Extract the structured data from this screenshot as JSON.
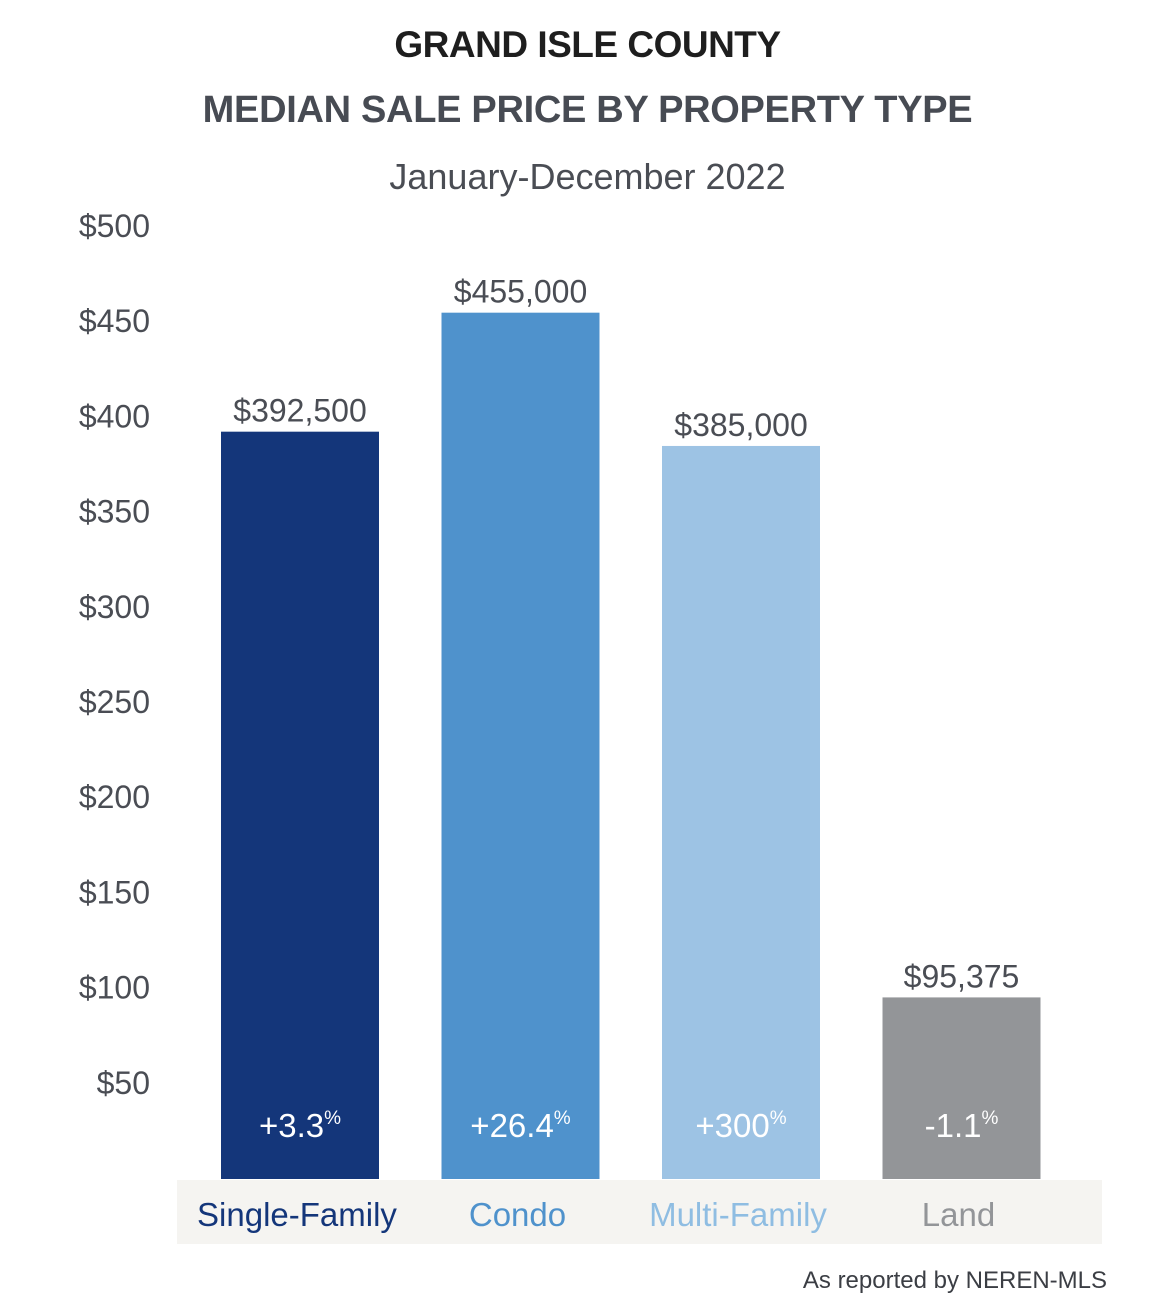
{
  "title_line_1": "GRAND ISLE COUNTY",
  "title_line_2": "MEDIAN SALE PRICE BY PROPERTY TYPE",
  "subtitle": "January-December 2022",
  "source_note": "As reported by NEREN-MLS",
  "chart_data": {
    "type": "bar",
    "title": "GRAND ISLE COUNTY MEDIAN SALE PRICE BY PROPERTY TYPE",
    "subtitle": "January-December 2022",
    "categories": [
      "Single-Family",
      "Condo",
      "Multi-Family",
      "Land"
    ],
    "values": [
      392500,
      455000,
      385000,
      95375
    ],
    "value_labels": [
      "$392,500",
      "$455,000",
      "$385,000",
      "$95,375"
    ],
    "change_labels": [
      "+3.3",
      "+26.4",
      "+300",
      "-1.1"
    ],
    "change_unit": "%",
    "bar_colors": [
      "#14367a",
      "#4f92cc",
      "#9dc3e4",
      "#939598"
    ],
    "category_label_colors": [
      "#14367a",
      "#4f92cc",
      "#8fbde2",
      "#939598"
    ],
    "y_ticks": [
      50,
      100,
      150,
      200,
      250,
      300,
      350,
      400,
      450,
      500
    ],
    "y_tick_labels": [
      "$50",
      "$100",
      "$150",
      "$200",
      "$250",
      "$300",
      "$350",
      "$400",
      "$450",
      "$500"
    ],
    "y_unit_scale": 1000,
    "ylim": [
      0,
      500
    ],
    "xlabel": "",
    "ylabel": "",
    "grid": false,
    "legend": "none"
  }
}
